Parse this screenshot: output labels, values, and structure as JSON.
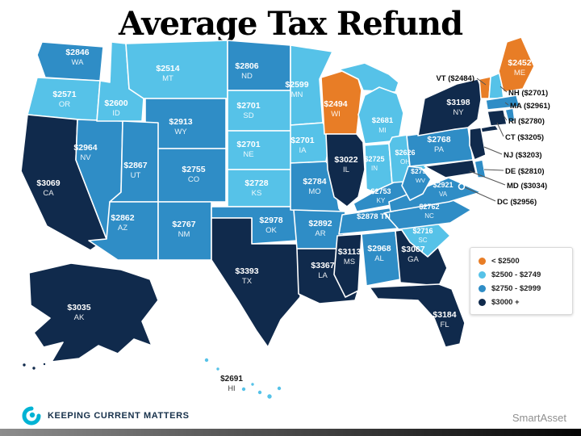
{
  "title": "Average Tax Refund",
  "legend": {
    "items": [
      {
        "label": "< $2500",
        "color": "#E87D26",
        "bucket": "lt2500"
      },
      {
        "label": "$2500 - $2749",
        "color": "#56C2E8",
        "bucket": "b2500"
      },
      {
        "label": "$2750 - $2999",
        "color": "#2F8DC6",
        "bucket": "b2750"
      },
      {
        "label": "$3000 +",
        "color": "#102A4C",
        "bucket": "b3000"
      }
    ]
  },
  "footer": {
    "brand": "Keeping Current Matters",
    "credit": "SmartAsset"
  },
  "states": {
    "WA": {
      "abbr": "WA",
      "value": "$2846",
      "bucket": "b2750"
    },
    "OR": {
      "abbr": "OR",
      "value": "$2571",
      "bucket": "b2500"
    },
    "CA": {
      "abbr": "CA",
      "value": "$3069",
      "bucket": "b3000"
    },
    "NV": {
      "abbr": "NV",
      "value": "$2964",
      "bucket": "b2750"
    },
    "ID": {
      "abbr": "ID",
      "value": "$2600",
      "bucket": "b2500"
    },
    "MT": {
      "abbr": "MT",
      "value": "$2514",
      "bucket": "b2500"
    },
    "WY": {
      "abbr": "WY",
      "value": "$2913",
      "bucket": "b2750"
    },
    "UT": {
      "abbr": "UT",
      "value": "$2867",
      "bucket": "b2750"
    },
    "CO": {
      "abbr": "CO",
      "value": "$2755",
      "bucket": "b2750"
    },
    "AZ": {
      "abbr": "AZ",
      "value": "$2862",
      "bucket": "b2750"
    },
    "NM": {
      "abbr": "NM",
      "value": "$2767",
      "bucket": "b2750"
    },
    "ND": {
      "abbr": "ND",
      "value": "$2806",
      "bucket": "b2750"
    },
    "SD": {
      "abbr": "SD",
      "value": "$2701",
      "bucket": "b2500"
    },
    "NE": {
      "abbr": "NE",
      "value": "$2701",
      "bucket": "b2500"
    },
    "KS": {
      "abbr": "KS",
      "value": "$2728",
      "bucket": "b2500"
    },
    "OK": {
      "abbr": "OK",
      "value": "$2978",
      "bucket": "b2750"
    },
    "TX": {
      "abbr": "TX",
      "value": "$3393",
      "bucket": "b3000"
    },
    "MN": {
      "abbr": "MN",
      "value": "$2599",
      "bucket": "b2500"
    },
    "IA": {
      "abbr": "IA",
      "value": "$2701",
      "bucket": "b2500"
    },
    "MO": {
      "abbr": "MO",
      "value": "$2784",
      "bucket": "b2750"
    },
    "AR": {
      "abbr": "AR",
      "value": "$2892",
      "bucket": "b2750"
    },
    "LA": {
      "abbr": "LA",
      "value": "$3367",
      "bucket": "b3000"
    },
    "WI": {
      "abbr": "WI",
      "value": "$2494",
      "bucket": "lt2500"
    },
    "IL": {
      "abbr": "IL",
      "value": "$3022",
      "bucket": "b3000"
    },
    "MI": {
      "abbr": "MI",
      "value": "$2681",
      "bucket": "b2500"
    },
    "IN": {
      "abbr": "IN",
      "value": "$2725",
      "bucket": "b2500"
    },
    "OH": {
      "abbr": "OH",
      "value": "$2626",
      "bucket": "b2500"
    },
    "KY": {
      "abbr": "KY",
      "value": "$2753",
      "bucket": "b2750"
    },
    "TN": {
      "abbr": "TN",
      "value": "$2878",
      "bucket": "b2750"
    },
    "MS": {
      "abbr": "MS",
      "value": "$3113",
      "bucket": "b3000"
    },
    "AL": {
      "abbr": "AL",
      "value": "$2968",
      "bucket": "b2750"
    },
    "GA": {
      "abbr": "GA",
      "value": "$3067",
      "bucket": "b3000"
    },
    "FL": {
      "abbr": "FL",
      "value": "$3184",
      "bucket": "b3000"
    },
    "SC": {
      "abbr": "SC",
      "value": "$2716",
      "bucket": "b2500"
    },
    "NC": {
      "abbr": "NC",
      "value": "$2762",
      "bucket": "b2750"
    },
    "VA": {
      "abbr": "VA",
      "value": "$2921",
      "bucket": "b2750"
    },
    "WV": {
      "abbr": "WV",
      "value": "$2753",
      "bucket": "b2750"
    },
    "PA": {
      "abbr": "PA",
      "value": "$2768",
      "bucket": "b2750"
    },
    "NY": {
      "abbr": "NY",
      "value": "$3198",
      "bucket": "b3000"
    },
    "NJ": {
      "abbr": "NJ",
      "value": "$3203",
      "bucket": "b3000"
    },
    "DE": {
      "abbr": "DE",
      "value": "$2810",
      "bucket": "b2750"
    },
    "MD": {
      "abbr": "MD",
      "value": "$3034",
      "bucket": "b3000"
    },
    "DC": {
      "abbr": "DC",
      "value": "$2956",
      "bucket": "b2750"
    },
    "CT": {
      "abbr": "CT",
      "value": "$3205",
      "bucket": "b3000"
    },
    "RI": {
      "abbr": "RI",
      "value": "$2780",
      "bucket": "b2750"
    },
    "MA": {
      "abbr": "MA",
      "value": "$2961",
      "bucket": "b2750"
    },
    "VT": {
      "abbr": "VT",
      "value": "$2484",
      "bucket": "lt2500"
    },
    "NH": {
      "abbr": "NH",
      "value": "$2701",
      "bucket": "b2500"
    },
    "ME": {
      "abbr": "ME",
      "value": "$2452",
      "bucket": "lt2500"
    },
    "AK": {
      "abbr": "AK",
      "value": "$3035",
      "bucket": "b3000"
    },
    "HI": {
      "abbr": "HI",
      "value": "$2691",
      "bucket": "b2500"
    }
  },
  "chart_data": {
    "type": "heatmap",
    "subtype": "us-choropleth",
    "title": "Average Tax Refund",
    "unit": "USD",
    "legend_position": "right",
    "buckets": [
      {
        "range": "< $2500",
        "color": "#E87D26"
      },
      {
        "range": "$2500 - $2749",
        "color": "#56C2E8"
      },
      {
        "range": "$2750 - $2999",
        "color": "#2F8DC6"
      },
      {
        "range": "$3000 +",
        "color": "#102A4C"
      }
    ],
    "categories": [
      "WA",
      "OR",
      "CA",
      "NV",
      "ID",
      "MT",
      "WY",
      "UT",
      "CO",
      "AZ",
      "NM",
      "ND",
      "SD",
      "NE",
      "KS",
      "OK",
      "TX",
      "MN",
      "IA",
      "MO",
      "AR",
      "LA",
      "WI",
      "IL",
      "MI",
      "IN",
      "OH",
      "KY",
      "TN",
      "MS",
      "AL",
      "GA",
      "FL",
      "SC",
      "NC",
      "VA",
      "WV",
      "PA",
      "NY",
      "NJ",
      "DE",
      "MD",
      "DC",
      "CT",
      "RI",
      "MA",
      "VT",
      "NH",
      "ME",
      "AK",
      "HI"
    ],
    "values": [
      2846,
      2571,
      3069,
      2964,
      2600,
      2514,
      2913,
      2867,
      2755,
      2862,
      2767,
      2806,
      2701,
      2701,
      2728,
      2978,
      3393,
      2599,
      2701,
      2784,
      2892,
      3367,
      2494,
      3022,
      2681,
      2725,
      2626,
      2753,
      2878,
      3113,
      2968,
      3067,
      3184,
      2716,
      2762,
      2921,
      2753,
      2768,
      3198,
      3203,
      2810,
      3034,
      2956,
      3205,
      2780,
      2961,
      2484,
      2701,
      2452,
      3035,
      2691
    ]
  }
}
